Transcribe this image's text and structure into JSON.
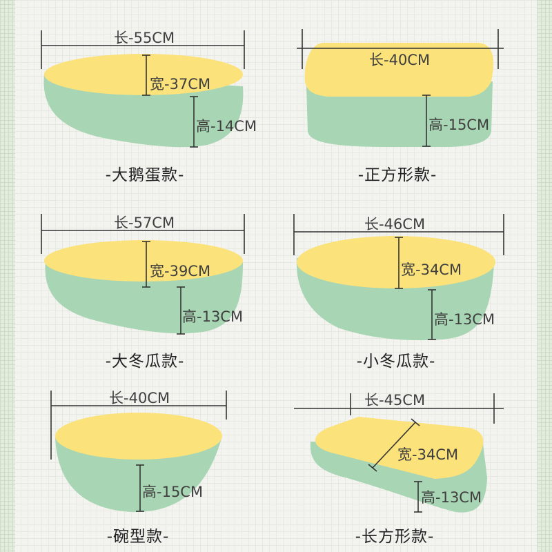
{
  "colors": {
    "top_surface": "#fbe27a",
    "side_surface": "#a8d5b3",
    "dimension_lines": "#333333",
    "text": "#3f3f3f"
  },
  "products": [
    {
      "name": "-大鹅蛋款-",
      "length": "长-55CM",
      "width": "宽-37CM",
      "height": "高-14CM"
    },
    {
      "name": "-正方形款-",
      "length": "长-40CM",
      "height": "高-15CM"
    },
    {
      "name": "-大冬瓜款-",
      "length": "长-57CM",
      "width": "宽-39CM",
      "height": "高-13CM"
    },
    {
      "name": "-小冬瓜款-",
      "length": "长-46CM",
      "width": "宽-34CM",
      "height": "高-13CM"
    },
    {
      "name": "-碗型款-",
      "length": "长-40CM",
      "height": "高-15CM"
    },
    {
      "name": "-长方形款-",
      "length": "长-45CM",
      "width": "宽-34CM",
      "height": "高-13CM"
    }
  ]
}
